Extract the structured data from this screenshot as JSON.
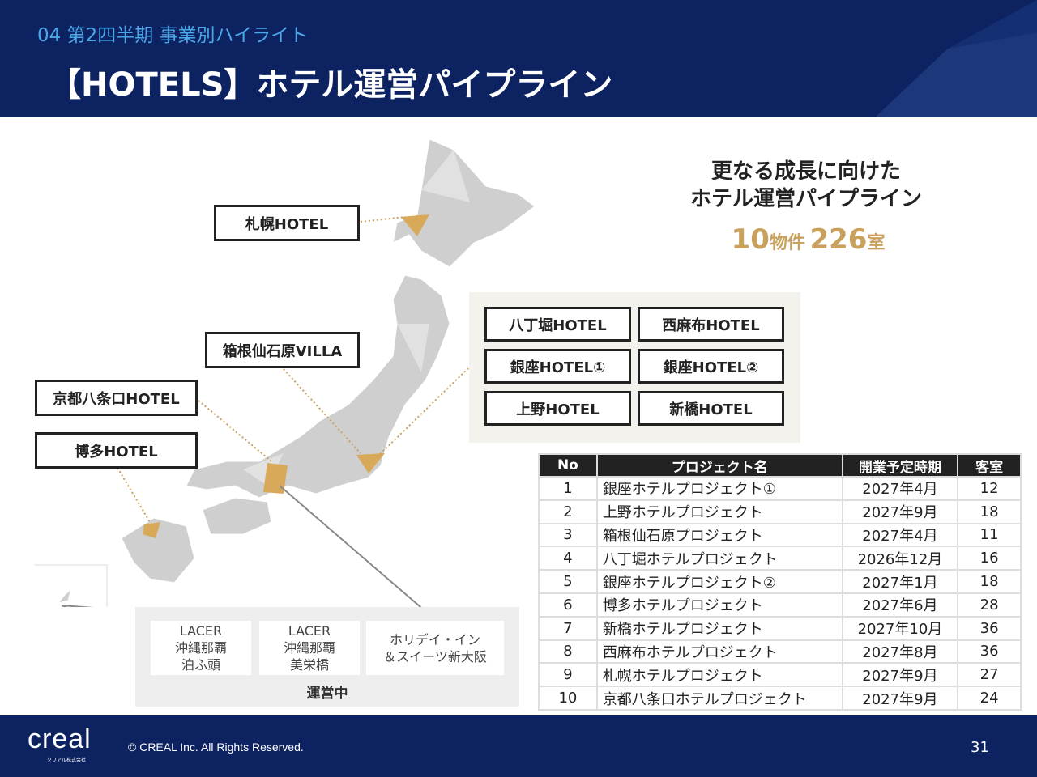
{
  "header": {
    "section": "04 第2四半期 事業別ハイライト",
    "title": "【HOTELS】ホテル運営パイプライン"
  },
  "headline": {
    "line1": "更なる成長に向けた",
    "line2": "ホテル運営パイプライン",
    "properties": "10",
    "properties_unit": "物件",
    "rooms": "226",
    "rooms_unit": "室"
  },
  "map_labels": {
    "sapporo": "札幌HOTEL",
    "hakone": "箱根仙石原VILLA",
    "kyoto": "京都八条口HOTEL",
    "hakata": "博多HOTEL"
  },
  "tokyo": [
    "八丁堀HOTEL",
    "西麻布HOTEL",
    "銀座HOTEL①",
    "銀座HOTEL②",
    "上野HOTEL",
    "新橋HOTEL"
  ],
  "operating": {
    "label": "運営中",
    "hotels": [
      "LACER\n沖縄那覇\n泊ふ頭",
      "LACER\n沖縄那覇\n美栄橋",
      "ホリデイ・イン\n＆スイーツ新大阪"
    ]
  },
  "table": {
    "headers": [
      "No",
      "プロジェクト名",
      "開業予定時期",
      "客室"
    ],
    "rows": [
      [
        "1",
        "銀座ホテルプロジェクト①",
        "2027年4月",
        "12"
      ],
      [
        "2",
        "上野ホテルプロジェクト",
        "2027年9月",
        "18"
      ],
      [
        "3",
        "箱根仙石原プロジェクト",
        "2027年4月",
        "11"
      ],
      [
        "4",
        "八丁堀ホテルプロジェクト",
        "2026年12月",
        "16"
      ],
      [
        "5",
        "銀座ホテルプロジェクト②",
        "2027年1月",
        "18"
      ],
      [
        "6",
        "博多ホテルプロジェクト",
        "2027年6月",
        "28"
      ],
      [
        "7",
        "新橋ホテルプロジェクト",
        "2027年10月",
        "36"
      ],
      [
        "8",
        "西麻布ホテルプロジェクト",
        "2027年8月",
        "36"
      ],
      [
        "9",
        "札幌ホテルプロジェクト",
        "2027年9月",
        "27"
      ],
      [
        "10",
        "京都八条口ホテルプロジェクト",
        "2027年9月",
        "24"
      ]
    ]
  },
  "footer": {
    "logo": "creal",
    "logo_sub": "クリアル株式会社",
    "copyright": "© CREAL Inc. All Rights Reserved.",
    "page": "31"
  },
  "colors": {
    "navy": "#0d2260",
    "gold": "#d9a95a"
  }
}
